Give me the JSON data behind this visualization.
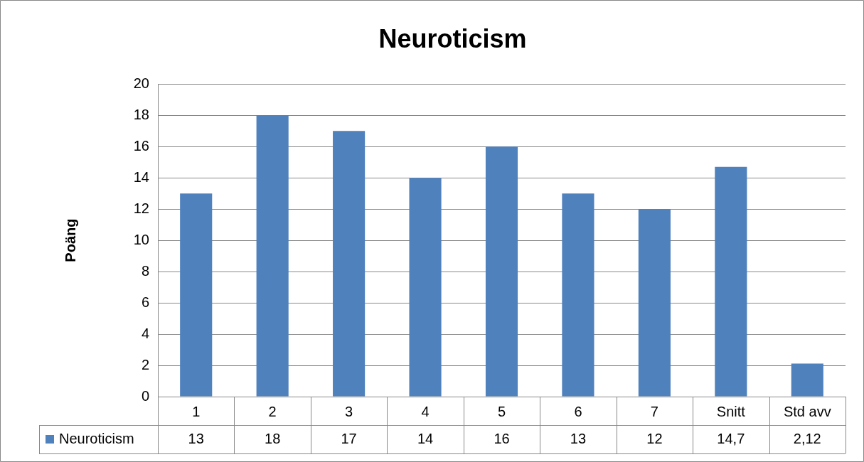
{
  "chart_data": {
    "type": "bar",
    "title": "Neuroticism",
    "ylabel": "Poäng",
    "categories": [
      "1",
      "2",
      "3",
      "4",
      "5",
      "6",
      "7",
      "Snitt",
      "Std avv"
    ],
    "series": [
      {
        "name": "Neuroticism",
        "color": "#4f81bd",
        "values": [
          13,
          18,
          17,
          14,
          16,
          13,
          12,
          14.7,
          2.12
        ],
        "value_labels": [
          "13",
          "18",
          "17",
          "14",
          "16",
          "13",
          "12",
          "14,7",
          "2,12"
        ]
      }
    ],
    "ylim": [
      0,
      20
    ],
    "yticks": [
      0,
      2,
      4,
      6,
      8,
      10,
      12,
      14,
      16,
      18,
      20
    ],
    "grid": "y",
    "legend": "bottom left"
  }
}
